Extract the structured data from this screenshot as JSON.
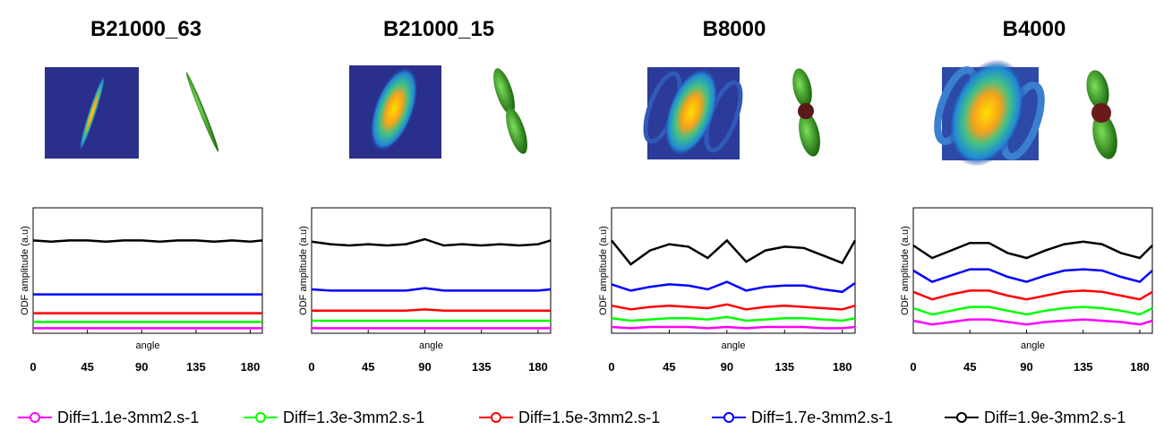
{
  "chart_data": [
    {
      "type": "line",
      "title": "B21000_63",
      "xlabel": "angle",
      "ylabel": "ODF amplitude (a.u)",
      "x": [
        0,
        15,
        30,
        45,
        60,
        75,
        90,
        105,
        120,
        135,
        150,
        165,
        180,
        190
      ],
      "xlim": [
        0,
        190
      ],
      "xticks": [
        0,
        45,
        90,
        135,
        180
      ],
      "ylim": [
        0,
        1
      ],
      "series": [
        {
          "name": "Diff=1.1e-3mm2.s-1",
          "color": "#ff00ff",
          "values": [
            0.04,
            0.04,
            0.04,
            0.04,
            0.04,
            0.04,
            0.04,
            0.04,
            0.04,
            0.04,
            0.04,
            0.04,
            0.04,
            0.04
          ]
        },
        {
          "name": "Diff=1.3e-3mm2.s-1",
          "color": "#00ff00",
          "values": [
            0.09,
            0.09,
            0.09,
            0.09,
            0.09,
            0.09,
            0.09,
            0.09,
            0.09,
            0.09,
            0.09,
            0.09,
            0.09,
            0.09
          ]
        },
        {
          "name": "Diff=1.5e-3mm2.s-1",
          "color": "#ff0000",
          "values": [
            0.16,
            0.16,
            0.16,
            0.16,
            0.16,
            0.16,
            0.16,
            0.16,
            0.16,
            0.16,
            0.16,
            0.16,
            0.16,
            0.16
          ]
        },
        {
          "name": "Diff=1.7e-3mm2.s-1",
          "color": "#0000ff",
          "values": [
            0.31,
            0.31,
            0.31,
            0.31,
            0.31,
            0.31,
            0.31,
            0.31,
            0.31,
            0.31,
            0.31,
            0.31,
            0.31,
            0.31
          ]
        },
        {
          "name": "Diff=1.9e-3mm2.s-1",
          "color": "#000000",
          "values": [
            0.74,
            0.73,
            0.74,
            0.74,
            0.73,
            0.74,
            0.74,
            0.73,
            0.74,
            0.74,
            0.73,
            0.74,
            0.73,
            0.74
          ]
        }
      ]
    },
    {
      "type": "line",
      "title": "B21000_15",
      "xlabel": "angle",
      "ylabel": "ODF amplitude (a.u)",
      "x": [
        0,
        15,
        30,
        45,
        60,
        75,
        90,
        105,
        120,
        135,
        150,
        165,
        180,
        190
      ],
      "xlim": [
        0,
        190
      ],
      "xticks": [
        0,
        45,
        90,
        135,
        180
      ],
      "ylim": [
        0,
        1
      ],
      "series": [
        {
          "name": "Diff=1.1e-3mm2.s-1",
          "color": "#ff00ff",
          "values": [
            0.04,
            0.04,
            0.04,
            0.04,
            0.04,
            0.04,
            0.04,
            0.04,
            0.04,
            0.04,
            0.04,
            0.04,
            0.04,
            0.04
          ]
        },
        {
          "name": "Diff=1.3e-3mm2.s-1",
          "color": "#00ff00",
          "values": [
            0.1,
            0.1,
            0.1,
            0.1,
            0.1,
            0.1,
            0.1,
            0.1,
            0.1,
            0.1,
            0.1,
            0.1,
            0.1,
            0.1
          ]
        },
        {
          "name": "Diff=1.5e-3mm2.s-1",
          "color": "#ff0000",
          "values": [
            0.18,
            0.18,
            0.18,
            0.18,
            0.18,
            0.18,
            0.19,
            0.18,
            0.18,
            0.18,
            0.18,
            0.18,
            0.18,
            0.18
          ]
        },
        {
          "name": "Diff=1.7e-3mm2.s-1",
          "color": "#0000ff",
          "values": [
            0.35,
            0.34,
            0.34,
            0.34,
            0.34,
            0.34,
            0.36,
            0.34,
            0.34,
            0.34,
            0.34,
            0.34,
            0.34,
            0.35
          ]
        },
        {
          "name": "Diff=1.9e-3mm2.s-1",
          "color": "#000000",
          "values": [
            0.73,
            0.71,
            0.7,
            0.71,
            0.7,
            0.71,
            0.75,
            0.7,
            0.71,
            0.7,
            0.71,
            0.7,
            0.71,
            0.74
          ]
        }
      ]
    },
    {
      "type": "line",
      "title": "B8000",
      "xlabel": "angle",
      "ylabel": "ODF amplitude (a.u)",
      "x": [
        0,
        15,
        30,
        45,
        60,
        75,
        90,
        105,
        120,
        135,
        150,
        165,
        180,
        190
      ],
      "xlim": [
        0,
        190
      ],
      "xticks": [
        0,
        45,
        90,
        135,
        180
      ],
      "ylim": [
        0,
        1
      ],
      "series": [
        {
          "name": "Diff=1.1e-3mm2.s-1",
          "color": "#ff00ff",
          "values": [
            0.05,
            0.04,
            0.05,
            0.05,
            0.05,
            0.04,
            0.05,
            0.04,
            0.05,
            0.05,
            0.05,
            0.04,
            0.04,
            0.05
          ]
        },
        {
          "name": "Diff=1.3e-3mm2.s-1",
          "color": "#00ff00",
          "values": [
            0.12,
            0.1,
            0.11,
            0.12,
            0.12,
            0.11,
            0.13,
            0.1,
            0.11,
            0.12,
            0.12,
            0.11,
            0.1,
            0.12
          ]
        },
        {
          "name": "Diff=1.5e-3mm2.s-1",
          "color": "#ff0000",
          "values": [
            0.22,
            0.19,
            0.21,
            0.22,
            0.21,
            0.2,
            0.23,
            0.19,
            0.21,
            0.22,
            0.21,
            0.2,
            0.19,
            0.22
          ]
        },
        {
          "name": "Diff=1.7e-3mm2.s-1",
          "color": "#0000ff",
          "values": [
            0.39,
            0.34,
            0.37,
            0.39,
            0.38,
            0.35,
            0.41,
            0.34,
            0.37,
            0.38,
            0.38,
            0.35,
            0.33,
            0.4
          ]
        },
        {
          "name": "Diff=1.9e-3mm2.s-1",
          "color": "#000000",
          "values": [
            0.74,
            0.55,
            0.66,
            0.71,
            0.69,
            0.6,
            0.74,
            0.57,
            0.66,
            0.69,
            0.68,
            0.62,
            0.56,
            0.74
          ]
        }
      ]
    },
    {
      "type": "line",
      "title": "B4000",
      "xlabel": "angle",
      "ylabel": "ODF amplitude (a.u)",
      "x": [
        0,
        15,
        30,
        45,
        60,
        75,
        90,
        105,
        120,
        135,
        150,
        165,
        180,
        190
      ],
      "xlim": [
        0,
        190
      ],
      "xticks": [
        0,
        45,
        90,
        135,
        180
      ],
      "ylim": [
        0,
        1
      ],
      "series": [
        {
          "name": "Diff=1.1e-3mm2.s-1",
          "color": "#ff00ff",
          "values": [
            0.1,
            0.07,
            0.09,
            0.11,
            0.11,
            0.09,
            0.07,
            0.09,
            0.1,
            0.11,
            0.1,
            0.09,
            0.07,
            0.1
          ]
        },
        {
          "name": "Diff=1.3e-3mm2.s-1",
          "color": "#00ff00",
          "values": [
            0.2,
            0.15,
            0.18,
            0.21,
            0.21,
            0.18,
            0.15,
            0.18,
            0.2,
            0.21,
            0.2,
            0.18,
            0.15,
            0.2
          ]
        },
        {
          "name": "Diff=1.5e-3mm2.s-1",
          "color": "#ff0000",
          "values": [
            0.33,
            0.27,
            0.31,
            0.34,
            0.34,
            0.3,
            0.27,
            0.3,
            0.33,
            0.34,
            0.33,
            0.3,
            0.27,
            0.33
          ]
        },
        {
          "name": "Diff=1.7e-3mm2.s-1",
          "color": "#0000ff",
          "values": [
            0.5,
            0.41,
            0.46,
            0.51,
            0.51,
            0.45,
            0.41,
            0.46,
            0.5,
            0.51,
            0.5,
            0.45,
            0.41,
            0.5
          ]
        },
        {
          "name": "Diff=1.9e-3mm2.s-1",
          "color": "#000000",
          "values": [
            0.7,
            0.6,
            0.66,
            0.72,
            0.72,
            0.64,
            0.6,
            0.66,
            0.71,
            0.73,
            0.71,
            0.64,
            0.6,
            0.7
          ]
        }
      ]
    }
  ]
}
